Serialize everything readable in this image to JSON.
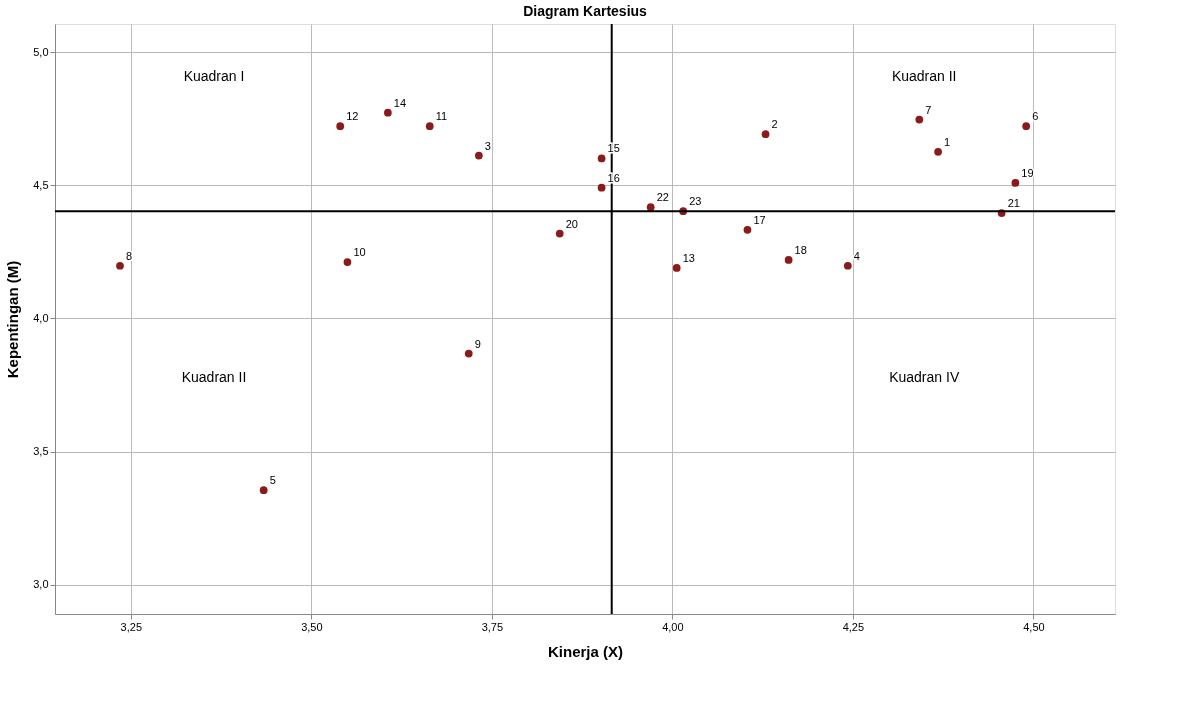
{
  "chart_data": {
    "type": "scatter",
    "title": "Diagram Kartesius",
    "xlabel": "Kinerja (X)",
    "ylabel": "Kepentingan (M)",
    "x": [
      4.368,
      4.129,
      3.732,
      4.243,
      3.434,
      4.49,
      4.342,
      3.235,
      3.718,
      3.55,
      3.664,
      3.54,
      4.006,
      3.606,
      3.902,
      3.902,
      4.104,
      4.161,
      4.475,
      3.844,
      4.456,
      3.97,
      4.015
    ],
    "values": [
      4.626,
      4.692,
      4.612,
      4.198,
      3.355,
      4.722,
      4.747,
      4.198,
      3.868,
      4.212,
      4.722,
      4.722,
      4.19,
      4.773,
      4.601,
      4.491,
      4.333,
      4.22,
      4.509,
      4.319,
      4.396,
      4.418,
      4.403
    ],
    "color": "#8b1a1a",
    "marker": "circle",
    "grid": true,
    "xlim": [
      3.145,
      4.613
    ],
    "ylim": [
      2.89,
      5.106
    ],
    "xticks": [
      {
        "value": 3.25,
        "label": "3,25"
      },
      {
        "value": 3.5,
        "label": "3,50"
      },
      {
        "value": 3.75,
        "label": "3,75"
      },
      {
        "value": 4.0,
        "label": "4,00"
      },
      {
        "value": 4.25,
        "label": "4,25"
      },
      {
        "value": 4.5,
        "label": "4,50"
      }
    ],
    "yticks": [
      {
        "value": 3.0,
        "label": "3,0"
      },
      {
        "value": 3.5,
        "label": "3,5"
      },
      {
        "value": 4.0,
        "label": "4,0"
      },
      {
        "value": 4.5,
        "label": "4,5"
      },
      {
        "value": 5.0,
        "label": "5,0"
      }
    ],
    "ref_lines": [
      {
        "axis": "x",
        "value": 3.916,
        "color": "#000000"
      },
      {
        "axis": "y",
        "value": 4.403,
        "color": "#000000"
      }
    ],
    "annotations": [
      "Kuadran I",
      "Kuadran II",
      "Kuadran II",
      "Kuadran IV",
      {
        "text": "1",
        "x": 4.368,
        "y": 4.626
      },
      {
        "text": "2",
        "x": 4.129,
        "y": 4.692
      },
      {
        "text": "3",
        "x": 3.732,
        "y": 4.612
      },
      {
        "text": "4",
        "x": 4.243,
        "y": 4.198
      },
      {
        "text": "5",
        "x": 3.434,
        "y": 3.355
      },
      {
        "text": "6",
        "x": 4.49,
        "y": 4.722
      },
      {
        "text": "7",
        "x": 4.342,
        "y": 4.747
      },
      {
        "text": "8",
        "x": 3.235,
        "y": 4.198
      },
      {
        "text": "9",
        "x": 3.718,
        "y": 3.868
      },
      {
        "text": "10",
        "x": 3.55,
        "y": 4.212
      },
      {
        "text": "11",
        "x": 3.664,
        "y": 4.722
      },
      {
        "text": "12",
        "x": 3.54,
        "y": 4.722
      },
      {
        "text": "13",
        "x": 4.006,
        "y": 4.19
      },
      {
        "text": "14",
        "x": 3.606,
        "y": 4.773
      },
      {
        "text": "15",
        "x": 3.902,
        "y": 4.601
      },
      {
        "text": "16",
        "x": 3.902,
        "y": 4.491
      },
      {
        "text": "17",
        "x": 4.104,
        "y": 4.333
      },
      {
        "text": "18",
        "x": 4.161,
        "y": 4.22
      },
      {
        "text": "19",
        "x": 4.475,
        "y": 4.509
      },
      {
        "text": "20",
        "x": 3.844,
        "y": 4.319
      },
      {
        "text": "21",
        "x": 4.456,
        "y": 4.396
      },
      {
        "text": "22",
        "x": 3.97,
        "y": 4.418
      },
      {
        "text": "23",
        "x": 4.015,
        "y": 4.403
      }
    ]
  }
}
